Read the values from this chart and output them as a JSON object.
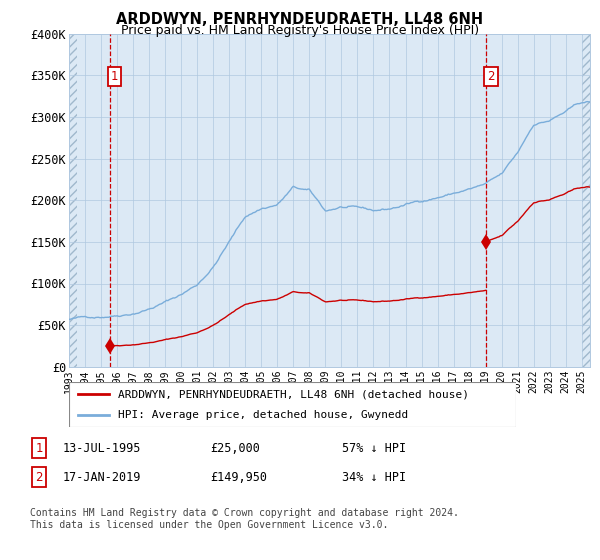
{
  "title": "ARDDWYN, PENRHYNDEUDRAETH, LL48 6NH",
  "subtitle": "Price paid vs. HM Land Registry's House Price Index (HPI)",
  "ylim": [
    0,
    400000
  ],
  "yticks": [
    0,
    50000,
    100000,
    150000,
    200000,
    250000,
    300000,
    350000,
    400000
  ],
  "ytick_labels": [
    "£0",
    "£50K",
    "£100K",
    "£150K",
    "£200K",
    "£250K",
    "£300K",
    "£350K",
    "£400K"
  ],
  "xlim_start": 1993.0,
  "xlim_end": 2025.5,
  "sale1_x": 1995.54,
  "sale1_y": 25000,
  "sale2_x": 2019.04,
  "sale2_y": 149950,
  "sale_color": "#cc0000",
  "hpi_color": "#7aadda",
  "price_line_color": "#cc0000",
  "chart_bg": "#dce9f5",
  "bg_color": "#ffffff",
  "grid_color": "#b0c8e0",
  "legend_label1": "ARDDWYN, PENRHYNDEUDRAETH, LL48 6NH (detached house)",
  "legend_label2": "HPI: Average price, detached house, Gwynedd",
  "footnote": "Contains HM Land Registry data © Crown copyright and database right 2024.\nThis data is licensed under the Open Government Licence v3.0.",
  "table_row1_num": "1",
  "table_row1_date": "13-JUL-1995",
  "table_row1_price": "£25,000",
  "table_row1_hpi": "57% ↓ HPI",
  "table_row2_num": "2",
  "table_row2_date": "17-JAN-2019",
  "table_row2_price": "£149,950",
  "table_row2_hpi": "34% ↓ HPI"
}
